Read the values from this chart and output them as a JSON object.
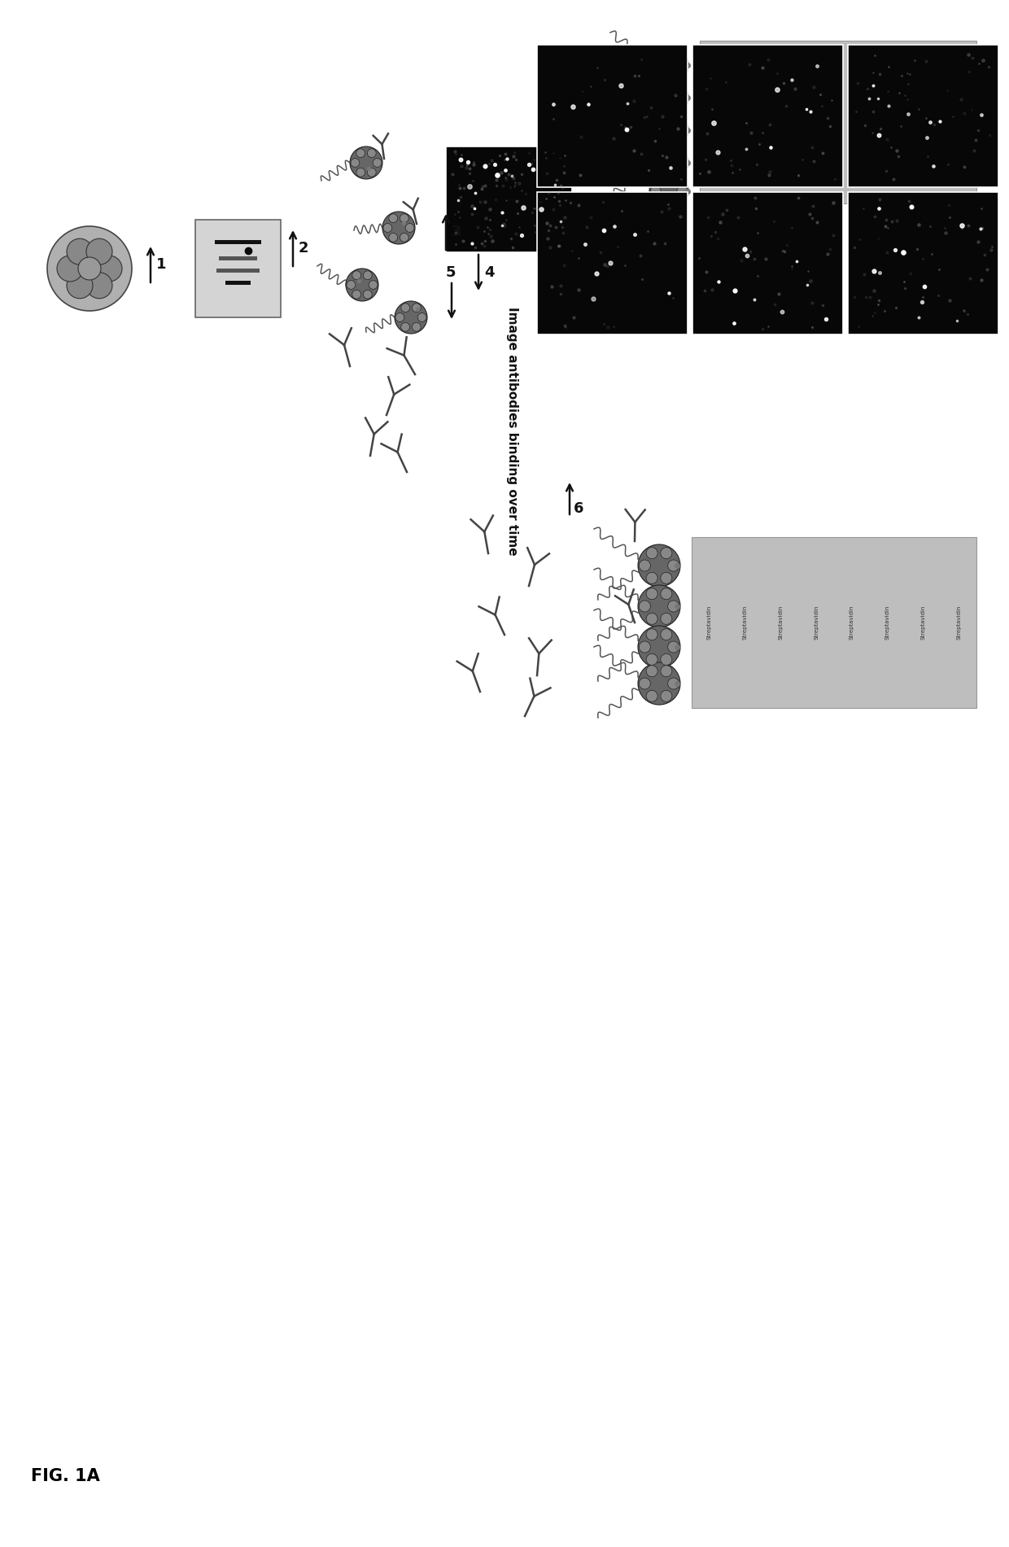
{
  "title": "FIG. 1A",
  "background_color": "#ffffff",
  "fig_width": 12.4,
  "fig_height": 19.01,
  "annotation_text": "Image antibodies binding over time",
  "streptavidin_text": "Streptavidin",
  "black_panel_color": "#080808",
  "medium_gray": "#888888",
  "light_gray": "#cccccc",
  "dark_gray": "#333333",
  "arrow_color": "#111111",
  "nuc_color": "#666666",
  "nuc_outer_color": "#888888",
  "dna_color": "#555555",
  "ab_color": "#444444",
  "gel_bg": "#d0d0d0",
  "gel_band": "#222222",
  "surf_color": "#bebebe",
  "surf_edge": "#999999",
  "panel_spots_base": 25,
  "panel_bright_base": 6
}
